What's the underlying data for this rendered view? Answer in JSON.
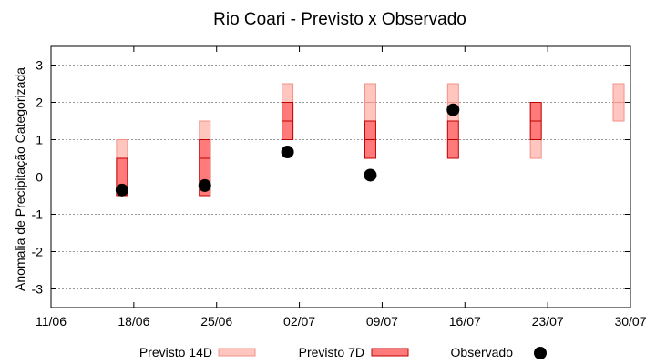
{
  "chart_data": {
    "type": "range-bar",
    "title": "Rio Coari - Previsto x Observado",
    "xlabel": "",
    "ylabel": "Anomalia de Precipitação Categorizada",
    "ylim": [
      -3.5,
      3.5
    ],
    "yticks": [
      -3,
      -2,
      -1,
      0,
      1,
      2,
      3
    ],
    "x_range": [
      "11/06",
      "30/07"
    ],
    "xticks": [
      "11/06",
      "18/06",
      "25/06",
      "02/07",
      "09/07",
      "16/07",
      "23/07",
      "30/07"
    ],
    "grid": {
      "y": true,
      "x": false
    },
    "legend_placement": "bottom",
    "series": [
      {
        "name": "Previsto 14D",
        "kind": "range",
        "color": "#ffc6c0",
        "edge": "#f0928a",
        "points": [
          {
            "x": "17/06",
            "low": -0.5,
            "mid": 0,
            "high": 1
          },
          {
            "x": "24/06",
            "low": -0.5,
            "mid": 0.5,
            "high": 1.5
          },
          {
            "x": "01/07",
            "low": 1,
            "mid": 1.5,
            "high": 2.5
          },
          {
            "x": "08/07",
            "low": 1.5,
            "mid": 2,
            "high": 2.5
          },
          {
            "x": "15/07",
            "low": 1.5,
            "mid": 2,
            "high": 2.5
          },
          {
            "x": "22/07",
            "low": 0.5,
            "mid": 1,
            "high": 2
          },
          {
            "x": "29/07",
            "low": 1.5,
            "mid": 2,
            "high": 2.5
          }
        ]
      },
      {
        "name": "Previsto 7D",
        "kind": "range",
        "color": "#ff7a7a",
        "edge": "#c00000",
        "points": [
          {
            "x": "17/06",
            "low": -0.5,
            "mid": 0,
            "high": 0.5
          },
          {
            "x": "24/06",
            "low": -0.5,
            "mid": 0.5,
            "high": 1
          },
          {
            "x": "01/07",
            "low": 1,
            "mid": 1.5,
            "high": 2
          },
          {
            "x": "08/07",
            "low": 0.5,
            "mid": 1,
            "high": 1.5
          },
          {
            "x": "15/07",
            "low": 0.5,
            "mid": 1,
            "high": 1.5
          },
          {
            "x": "22/07",
            "low": 1,
            "mid": 1.5,
            "high": 2
          }
        ]
      },
      {
        "name": "Observado",
        "kind": "point",
        "color": "#000000",
        "points": [
          {
            "x": "17/06",
            "y": -0.35
          },
          {
            "x": "24/06",
            "y": -0.23
          },
          {
            "x": "01/07",
            "y": 0.67
          },
          {
            "x": "08/07",
            "y": 0.05
          },
          {
            "x": "15/07",
            "y": 1.8
          }
        ]
      }
    ]
  }
}
